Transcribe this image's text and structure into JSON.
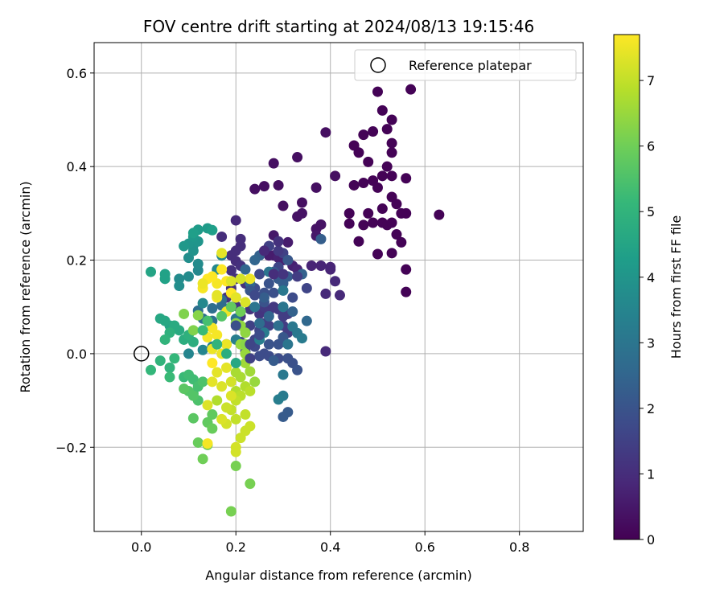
{
  "chart_data": {
    "type": "scatter",
    "title": "FOV centre drift starting at 2024/08/13 19:15:46",
    "xlabel": "Angular distance from reference (arcmin)",
    "ylabel": "Rotation from reference (arcmin)",
    "xlim": [
      -0.1,
      0.935
    ],
    "ylim": [
      -0.38,
      0.665
    ],
    "xticks": [
      0.0,
      0.2,
      0.4,
      0.6,
      0.8
    ],
    "xtick_labels": [
      "0.0",
      "0.2",
      "0.4",
      "0.6",
      "0.8"
    ],
    "yticks": [
      -0.2,
      0.0,
      0.2,
      0.4,
      0.6
    ],
    "ytick_labels": [
      "−0.2",
      "0.0",
      "0.2",
      "0.4",
      "0.6"
    ],
    "grid": true,
    "legend": {
      "position": "top-right",
      "entries": [
        "Reference platepar"
      ]
    },
    "reference_point": {
      "name": "Reference platepar",
      "x": 0.0,
      "y": 0.0,
      "marker": "open-circle"
    },
    "colorbar": {
      "label": "Hours from first FF file",
      "min": 0,
      "max": 7.7,
      "ticks": [
        0,
        1,
        2,
        3,
        4,
        5,
        6,
        7
      ],
      "colormap": "viridis"
    },
    "colormap_stops": [
      "#440154",
      "#482878",
      "#3e4989",
      "#31688e",
      "#26828e",
      "#1f9e89",
      "#35b779",
      "#6ece58",
      "#b5de2b",
      "#fde725"
    ],
    "points": [
      [
        0.57,
        0.565,
        0.05
      ],
      [
        0.5,
        0.56,
        0.05
      ],
      [
        0.51,
        0.52,
        0.05
      ],
      [
        0.53,
        0.5,
        0.05
      ],
      [
        0.52,
        0.48,
        0.05
      ],
      [
        0.49,
        0.475,
        0.05
      ],
      [
        0.47,
        0.468,
        0.05
      ],
      [
        0.45,
        0.445,
        0.05
      ],
      [
        0.53,
        0.45,
        0.05
      ],
      [
        0.53,
        0.43,
        0.05
      ],
      [
        0.46,
        0.43,
        0.05
      ],
      [
        0.48,
        0.41,
        0.05
      ],
      [
        0.52,
        0.4,
        0.05
      ],
      [
        0.51,
        0.38,
        0.05
      ],
      [
        0.53,
        0.38,
        0.05
      ],
      [
        0.56,
        0.375,
        0.05
      ],
      [
        0.49,
        0.37,
        0.05
      ],
      [
        0.47,
        0.365,
        0.05
      ],
      [
        0.45,
        0.36,
        0.05
      ],
      [
        0.5,
        0.355,
        0.05
      ],
      [
        0.53,
        0.335,
        0.05
      ],
      [
        0.54,
        0.32,
        0.05
      ],
      [
        0.51,
        0.31,
        0.05
      ],
      [
        0.48,
        0.3,
        0.05
      ],
      [
        0.44,
        0.3,
        0.05
      ],
      [
        0.56,
        0.3,
        0.05
      ],
      [
        0.55,
        0.3,
        0.05
      ],
      [
        0.63,
        0.297,
        0.05
      ],
      [
        0.51,
        0.28,
        0.05
      ],
      [
        0.52,
        0.275,
        0.05
      ],
      [
        0.49,
        0.28,
        0.05
      ],
      [
        0.47,
        0.275,
        0.05
      ],
      [
        0.44,
        0.278,
        0.05
      ],
      [
        0.53,
        0.28,
        0.05
      ],
      [
        0.54,
        0.255,
        0.05
      ],
      [
        0.55,
        0.238,
        0.05
      ],
      [
        0.46,
        0.24,
        0.05
      ],
      [
        0.53,
        0.215,
        0.05
      ],
      [
        0.5,
        0.213,
        0.05
      ],
      [
        0.56,
        0.18,
        0.05
      ],
      [
        0.56,
        0.132,
        0.05
      ],
      [
        0.39,
        0.473,
        0.3
      ],
      [
        0.33,
        0.42,
        0.3
      ],
      [
        0.41,
        0.38,
        0.3
      ],
      [
        0.28,
        0.407,
        0.3
      ],
      [
        0.24,
        0.352,
        0.3
      ],
      [
        0.26,
        0.358,
        0.3
      ],
      [
        0.29,
        0.36,
        0.3
      ],
      [
        0.37,
        0.355,
        0.3
      ],
      [
        0.34,
        0.323,
        0.3
      ],
      [
        0.3,
        0.316,
        0.3
      ],
      [
        0.33,
        0.293,
        0.4
      ],
      [
        0.34,
        0.3,
        0.4
      ],
      [
        0.38,
        0.276,
        0.4
      ],
      [
        0.37,
        0.267,
        0.4
      ],
      [
        0.37,
        0.252,
        0.5
      ],
      [
        0.28,
        0.253,
        0.5
      ],
      [
        0.31,
        0.238,
        0.6
      ],
      [
        0.27,
        0.23,
        0.6
      ],
      [
        0.27,
        0.21,
        0.6
      ],
      [
        0.28,
        0.21,
        0.6
      ],
      [
        0.29,
        0.205,
        0.7
      ],
      [
        0.3,
        0.2,
        0.7
      ],
      [
        0.32,
        0.188,
        0.7
      ],
      [
        0.33,
        0.18,
        0.8
      ],
      [
        0.36,
        0.188,
        0.8
      ],
      [
        0.38,
        0.188,
        0.8
      ],
      [
        0.4,
        0.185,
        0.8
      ],
      [
        0.4,
        0.18,
        0.8
      ],
      [
        0.41,
        0.155,
        0.9
      ],
      [
        0.39,
        0.128,
        0.9
      ],
      [
        0.42,
        0.125,
        0.9
      ],
      [
        0.39,
        0.005,
        0.9
      ],
      [
        0.2,
        0.285,
        0.9
      ],
      [
        0.17,
        0.25,
        1.0
      ],
      [
        0.21,
        0.245,
        1.0
      ],
      [
        0.21,
        0.23,
        1.0
      ],
      [
        0.2,
        0.22,
        1.0
      ],
      [
        0.19,
        0.21,
        1.0
      ],
      [
        0.2,
        0.198,
        1.0
      ],
      [
        0.21,
        0.188,
        1.1
      ],
      [
        0.19,
        0.178,
        1.1
      ],
      [
        0.2,
        0.16,
        1.1
      ],
      [
        0.22,
        0.15,
        1.1
      ],
      [
        0.19,
        0.14,
        1.1
      ],
      [
        0.18,
        0.12,
        1.1
      ],
      [
        0.2,
        0.102,
        1.2
      ],
      [
        0.19,
        0.1,
        1.2
      ],
      [
        0.21,
        0.08,
        1.2
      ],
      [
        0.23,
        0.095,
        1.2
      ],
      [
        0.25,
        0.085,
        1.2
      ],
      [
        0.26,
        0.1,
        1.3
      ],
      [
        0.27,
        0.09,
        1.3
      ],
      [
        0.28,
        0.1,
        1.3
      ],
      [
        0.29,
        0.095,
        1.3
      ],
      [
        0.3,
        0.08,
        1.4
      ],
      [
        0.31,
        0.085,
        1.4
      ],
      [
        0.3,
        0.06,
        1.4
      ],
      [
        0.31,
        0.045,
        1.4
      ],
      [
        0.29,
        0.06,
        1.5
      ],
      [
        0.27,
        0.06,
        1.5
      ],
      [
        0.26,
        0.065,
        1.5
      ],
      [
        0.23,
        0.06,
        1.5
      ],
      [
        0.24,
        0.03,
        1.6
      ],
      [
        0.25,
        0.05,
        1.6
      ],
      [
        0.22,
        0.045,
        1.6
      ],
      [
        0.21,
        0.025,
        1.7
      ],
      [
        0.22,
        0.005,
        1.7
      ],
      [
        0.24,
        0.015,
        1.7
      ],
      [
        0.25,
        -0.005,
        1.8
      ],
      [
        0.26,
        0.0,
        1.8
      ],
      [
        0.27,
        -0.005,
        1.8
      ],
      [
        0.29,
        -0.01,
        1.8
      ],
      [
        0.31,
        -0.01,
        1.9
      ],
      [
        0.32,
        -0.02,
        1.9
      ],
      [
        0.33,
        -0.035,
        2.0
      ],
      [
        0.29,
        0.02,
        2.0
      ],
      [
        0.3,
        0.025,
        2.0
      ],
      [
        0.3,
        0.035,
        2.1
      ],
      [
        0.31,
        -0.125,
        2.2
      ],
      [
        0.3,
        -0.135,
        2.2
      ],
      [
        0.3,
        0.215,
        1.5
      ],
      [
        0.29,
        0.185,
        1.6
      ],
      [
        0.25,
        0.17,
        1.7
      ],
      [
        0.24,
        0.14,
        1.8
      ],
      [
        0.26,
        0.13,
        1.9
      ],
      [
        0.28,
        0.13,
        1.9
      ],
      [
        0.26,
        0.11,
        2.0
      ],
      [
        0.3,
        0.1,
        2.0
      ],
      [
        0.28,
        0.175,
        2.1
      ],
      [
        0.31,
        0.2,
        2.1
      ],
      [
        0.31,
        0.165,
        2.2
      ],
      [
        0.29,
        0.16,
        2.2
      ],
      [
        0.3,
        0.15,
        2.3
      ],
      [
        0.38,
        0.245,
        2.3
      ],
      [
        0.34,
        0.17,
        2.4
      ],
      [
        0.25,
        0.21,
        2.4
      ],
      [
        0.24,
        0.2,
        2.5
      ],
      [
        0.22,
        0.18,
        2.5
      ],
      [
        0.23,
        0.15,
        2.6
      ],
      [
        0.2,
        0.12,
        2.6
      ],
      [
        0.17,
        0.115,
        2.7
      ],
      [
        0.17,
        0.103,
        2.7
      ],
      [
        0.15,
        0.097,
        2.8
      ],
      [
        0.12,
        0.092,
        2.8
      ],
      [
        0.13,
        0.075,
        2.9
      ],
      [
        0.15,
        0.07,
        2.9
      ],
      [
        0.2,
        0.075,
        3.0
      ],
      [
        0.24,
        0.1,
        3.0
      ],
      [
        0.3,
        0.1,
        3.0
      ],
      [
        0.32,
        0.058,
        3.1
      ],
      [
        0.33,
        0.044,
        3.1
      ],
      [
        0.34,
        0.033,
        3.2
      ],
      [
        0.26,
        0.045,
        3.2
      ],
      [
        0.25,
        0.03,
        3.3
      ],
      [
        0.2,
        0.03,
        3.3
      ],
      [
        0.18,
        0.02,
        3.4
      ],
      [
        0.15,
        0.015,
        3.4
      ],
      [
        0.13,
        0.008,
        3.5
      ],
      [
        0.1,
        0.0,
        3.5
      ],
      [
        0.16,
        0.18,
        3.6
      ],
      [
        0.17,
        0.21,
        3.6
      ],
      [
        0.27,
        0.175,
        3.0
      ],
      [
        0.3,
        0.135,
        3.1
      ],
      [
        0.3,
        -0.045,
        3.1
      ],
      [
        0.3,
        -0.09,
        3.2
      ],
      [
        0.29,
        -0.098,
        3.3
      ],
      [
        0.13,
        0.108,
        3.6
      ],
      [
        0.12,
        0.178,
        3.6
      ],
      [
        0.12,
        0.192,
        3.7
      ],
      [
        0.08,
        0.16,
        3.7
      ],
      [
        0.1,
        0.165,
        3.7
      ],
      [
        0.08,
        0.145,
        3.8
      ],
      [
        0.1,
        0.205,
        3.8
      ],
      [
        0.11,
        0.22,
        3.9
      ],
      [
        0.11,
        0.232,
        3.9
      ],
      [
        0.12,
        0.24,
        4.0
      ],
      [
        0.1,
        0.235,
        4.0
      ],
      [
        0.09,
        0.23,
        4.1
      ],
      [
        0.11,
        0.25,
        4.1
      ],
      [
        0.12,
        0.265,
        4.2
      ],
      [
        0.14,
        0.268,
        4.2
      ],
      [
        0.15,
        0.264,
        4.3
      ],
      [
        0.11,
        0.258,
        4.3
      ],
      [
        0.05,
        0.17,
        4.4
      ],
      [
        0.05,
        0.16,
        4.4
      ],
      [
        0.02,
        0.175,
        4.5
      ],
      [
        0.06,
        0.06,
        4.5
      ],
      [
        0.04,
        0.075,
        4.6
      ],
      [
        0.05,
        0.07,
        4.6
      ],
      [
        0.08,
        0.05,
        4.7
      ],
      [
        0.07,
        0.06,
        4.7
      ],
      [
        0.09,
        0.03,
        4.8
      ],
      [
        0.11,
        0.025,
        4.8
      ],
      [
        0.1,
        0.04,
        4.9
      ],
      [
        0.06,
        0.045,
        4.9
      ],
      [
        0.05,
        0.03,
        5.0
      ],
      [
        0.04,
        -0.015,
        5.0
      ],
      [
        0.06,
        -0.03,
        5.0
      ],
      [
        0.02,
        -0.035,
        5.1
      ],
      [
        0.07,
        -0.01,
        5.1
      ],
      [
        0.06,
        -0.05,
        5.2
      ],
      [
        0.09,
        -0.05,
        5.2
      ],
      [
        0.1,
        -0.045,
        5.3
      ],
      [
        0.11,
        -0.055,
        5.3
      ],
      [
        0.12,
        -0.07,
        5.4
      ],
      [
        0.11,
        -0.085,
        5.4
      ],
      [
        0.13,
        -0.06,
        5.5
      ],
      [
        0.12,
        -0.1,
        5.5
      ],
      [
        0.11,
        -0.09,
        5.6
      ],
      [
        0.1,
        -0.08,
        5.6
      ],
      [
        0.09,
        -0.075,
        5.7
      ],
      [
        0.11,
        -0.138,
        5.7
      ],
      [
        0.14,
        -0.147,
        5.8
      ],
      [
        0.15,
        -0.13,
        5.8
      ],
      [
        0.15,
        -0.16,
        5.9
      ],
      [
        0.12,
        -0.19,
        5.9
      ],
      [
        0.14,
        -0.195,
        6.0
      ],
      [
        0.13,
        -0.225,
        6.0
      ],
      [
        0.2,
        -0.24,
        6.1
      ],
      [
        0.23,
        -0.278,
        6.1
      ],
      [
        0.19,
        -0.337,
        6.1
      ],
      [
        0.11,
        0.05,
        6.2
      ],
      [
        0.09,
        0.085,
        6.2
      ],
      [
        0.12,
        0.082,
        6.3
      ],
      [
        0.2,
        0.065,
        6.3
      ],
      [
        0.21,
        0.06,
        6.4
      ],
      [
        0.22,
        0.045,
        6.4
      ],
      [
        0.21,
        0.02,
        6.5
      ],
      [
        0.22,
        0.0,
        6.5
      ],
      [
        0.22,
        -0.02,
        6.6
      ],
      [
        0.23,
        -0.038,
        6.6
      ],
      [
        0.2,
        -0.04,
        6.7
      ],
      [
        0.21,
        -0.05,
        6.7
      ],
      [
        0.22,
        -0.07,
        6.8
      ],
      [
        0.2,
        -0.08,
        6.8
      ],
      [
        0.21,
        -0.09,
        6.9
      ],
      [
        0.23,
        -0.08,
        6.9
      ],
      [
        0.2,
        -0.1,
        7.0
      ],
      [
        0.19,
        -0.12,
        7.0
      ],
      [
        0.22,
        -0.13,
        7.0
      ],
      [
        0.23,
        -0.155,
        7.1
      ],
      [
        0.22,
        -0.165,
        7.1
      ],
      [
        0.21,
        -0.18,
        7.1
      ],
      [
        0.2,
        -0.2,
        7.2
      ],
      [
        0.2,
        -0.21,
        7.2
      ],
      [
        0.18,
        -0.15,
        7.2
      ],
      [
        0.17,
        -0.14,
        7.3
      ],
      [
        0.19,
        -0.09,
        7.3
      ],
      [
        0.17,
        -0.07,
        7.3
      ],
      [
        0.15,
        -0.06,
        7.4
      ],
      [
        0.16,
        -0.04,
        7.4
      ],
      [
        0.18,
        -0.03,
        7.4
      ],
      [
        0.17,
        0.0,
        7.5
      ],
      [
        0.18,
        0.02,
        7.5
      ],
      [
        0.15,
        0.01,
        7.5
      ],
      [
        0.16,
        0.04,
        7.6
      ],
      [
        0.15,
        0.055,
        7.6
      ],
      [
        0.14,
        -0.192,
        7.6
      ],
      [
        0.16,
        0.15,
        7.6
      ],
      [
        0.14,
        0.16,
        7.7
      ],
      [
        0.15,
        0.165,
        7.7
      ],
      [
        0.17,
        0.18,
        7.7
      ],
      [
        0.18,
        0.155,
        7.7
      ],
      [
        0.19,
        0.13,
        7.7
      ],
      [
        0.16,
        0.12,
        7.6
      ],
      [
        0.13,
        0.14,
        7.6
      ],
      [
        0.23,
        0.16,
        7.5
      ],
      [
        0.2,
        0.12,
        7.4
      ],
      [
        0.18,
        0.09,
        7.5
      ],
      [
        0.22,
        0.11,
        7.3
      ],
      [
        0.17,
        0.215,
        7.4
      ],
      [
        0.19,
        0.155,
        7.3
      ],
      [
        0.21,
        0.16,
        7.2
      ],
      [
        0.13,
        0.15,
        7.5
      ],
      [
        0.16,
        0.125,
        7.4
      ],
      [
        0.14,
        0.035,
        7.6
      ],
      [
        0.15,
        -0.02,
        7.7
      ],
      [
        0.14,
        -0.11,
        7.3
      ],
      [
        0.19,
        -0.06,
        7.2
      ],
      [
        0.18,
        -0.115,
        7.1
      ],
      [
        0.2,
        -0.14,
        7.0
      ],
      [
        0.16,
        -0.1,
        6.8
      ],
      [
        0.24,
        -0.06,
        6.5
      ],
      [
        0.22,
        0.02,
        6.3
      ],
      [
        0.21,
        0.09,
        6.0
      ],
      [
        0.19,
        0.1,
        5.8
      ],
      [
        0.17,
        0.08,
        5.6
      ],
      [
        0.14,
        0.07,
        5.4
      ],
      [
        0.13,
        0.05,
        5.2
      ],
      [
        0.16,
        0.02,
        5.0
      ],
      [
        0.18,
        0.0,
        4.8
      ],
      [
        0.2,
        -0.02,
        4.6
      ],
      [
        0.25,
        0.065,
        2.7
      ],
      [
        0.27,
        0.08,
        2.5
      ],
      [
        0.26,
        0.12,
        2.3
      ],
      [
        0.23,
        0.135,
        2.1
      ],
      [
        0.2,
        0.06,
        1.9
      ],
      [
        0.24,
        0.125,
        1.7
      ],
      [
        0.27,
        0.23,
        1.5
      ],
      [
        0.29,
        0.22,
        1.3
      ],
      [
        0.29,
        0.24,
        1.1
      ],
      [
        0.26,
        0.22,
        0.9
      ],
      [
        0.28,
        0.17,
        1.0
      ],
      [
        0.3,
        0.17,
        1.2
      ],
      [
        0.33,
        0.165,
        1.4
      ],
      [
        0.35,
        0.14,
        1.6
      ],
      [
        0.32,
        0.12,
        1.8
      ],
      [
        0.27,
        0.15,
        2.0
      ],
      [
        0.32,
        0.09,
        2.4
      ],
      [
        0.35,
        0.07,
        2.6
      ],
      [
        0.29,
        0.06,
        2.8
      ],
      [
        0.31,
        0.02,
        3.0
      ],
      [
        0.28,
        -0.015,
        2.2
      ],
      [
        0.27,
        0.02,
        2.0
      ],
      [
        0.25,
        0.04,
        1.8
      ],
      [
        0.23,
        0.02,
        1.6
      ],
      [
        0.23,
        -0.01,
        1.5
      ]
    ]
  }
}
